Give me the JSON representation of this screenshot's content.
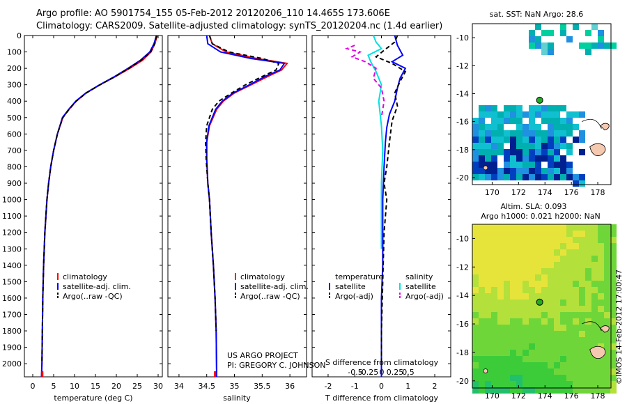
{
  "header": {
    "line1": "Argo profile: AO 5901754_155 05-Feb-2012 20120206_110 14.465S 173.606E",
    "line2": "Climatology: CARS2009. Satellite-adjusted climatology: synTS_20120204.nc (1.4d earlier)"
  },
  "chart_data": [
    {
      "type": "line",
      "id": "temperature",
      "xlabel": "temperature (deg C)",
      "xlim": [
        -2,
        31
      ],
      "xticks": [
        0,
        5,
        10,
        15,
        20,
        25,
        30
      ],
      "ylim": [
        0,
        2080
      ],
      "yticks": [
        0,
        100,
        200,
        300,
        400,
        500,
        600,
        700,
        800,
        900,
        1000,
        1100,
        1200,
        1300,
        1400,
        1500,
        1600,
        1700,
        1800,
        1900,
        2000
      ],
      "legend": [
        "climatology",
        "satellite-adj. clim.",
        "Argo(..raw -QC)"
      ],
      "series": [
        {
          "name": "climatology",
          "color": "#ff0000",
          "dash": "",
          "x": [
            29.8,
            29.2,
            28.3,
            26.3,
            23.2,
            19.8,
            16.1,
            12.8,
            10.4,
            8.7,
            7.2,
            5.9,
            5.0,
            4.3,
            3.8,
            3.4,
            2.9,
            2.6,
            2.4,
            2.3,
            2.2,
            2.1
          ],
          "y": [
            0,
            50,
            100,
            150,
            200,
            250,
            300,
            350,
            400,
            450,
            500,
            600,
            700,
            800,
            900,
            1000,
            1200,
            1400,
            1600,
            1800,
            2000,
            2080
          ]
        },
        {
          "name": "satellite-adj. clim.",
          "color": "#0000ff",
          "dash": "",
          "x": [
            29.6,
            29.0,
            28.0,
            25.8,
            22.8,
            19.6,
            16.0,
            12.7,
            10.3,
            8.6,
            7.1,
            5.9,
            5.0,
            4.3,
            3.8,
            3.4,
            2.9,
            2.6,
            2.4,
            2.3,
            2.2,
            2.1
          ],
          "y": [
            0,
            50,
            100,
            150,
            200,
            250,
            300,
            350,
            400,
            450,
            500,
            600,
            700,
            800,
            900,
            1000,
            1200,
            1400,
            1600,
            1800,
            2000,
            2080
          ]
        },
        {
          "name": "Argo(..raw -QC)",
          "color": "#000000",
          "dash": "6,4",
          "x": [
            29.6,
            29.2,
            28.2,
            26.0,
            23.0,
            19.7,
            16.1,
            12.8,
            10.4,
            8.7,
            7.2,
            5.9,
            5.0,
            4.3,
            3.8,
            3.4,
            2.9,
            2.6,
            2.4,
            2.3,
            2.2
          ],
          "y": [
            0,
            50,
            100,
            150,
            200,
            250,
            300,
            350,
            400,
            450,
            500,
            600,
            700,
            800,
            900,
            1000,
            1200,
            1400,
            1600,
            1800,
            2000
          ]
        }
      ],
      "marker": {
        "color": "#ff0000",
        "x": 2.3
      }
    },
    {
      "type": "line",
      "id": "salinity",
      "xlabel": "salinity",
      "xlim": [
        33.8,
        36.3
      ],
      "xticks": [
        34,
        34.5,
        35,
        35.5,
        36
      ],
      "xtick_labels": [
        "34",
        "34.5",
        "35",
        "35.5",
        "36"
      ],
      "ylim": [
        0,
        2080
      ],
      "legend": [
        "climatology",
        "satellite-adj. clim.",
        "Argo(..raw -QC)"
      ],
      "annotation": [
        "US ARGO PROJECT",
        "PI: GREGORY C. JOHNSON"
      ],
      "series": [
        {
          "name": "climatology",
          "color": "#ff0000",
          "dash": "",
          "x": [
            34.55,
            34.6,
            34.85,
            35.4,
            35.95,
            35.85,
            35.6,
            35.3,
            35.0,
            34.8,
            34.68,
            34.55,
            34.5,
            34.5,
            34.52,
            34.55,
            34.58,
            34.62,
            34.65,
            34.67,
            34.68
          ],
          "y": [
            0,
            50,
            100,
            140,
            170,
            210,
            250,
            300,
            350,
            400,
            450,
            550,
            650,
            750,
            900,
            1000,
            1200,
            1400,
            1600,
            1800,
            2080
          ]
        },
        {
          "name": "satellite-adj. clim.",
          "color": "#0000ff",
          "dash": "",
          "x": [
            34.5,
            34.52,
            34.75,
            35.3,
            35.9,
            35.82,
            35.55,
            35.27,
            34.98,
            34.78,
            34.66,
            34.54,
            34.5,
            34.5,
            34.52,
            34.55,
            34.58,
            34.62,
            34.65,
            34.67,
            34.68
          ],
          "y": [
            0,
            50,
            100,
            140,
            170,
            210,
            250,
            300,
            350,
            400,
            450,
            550,
            650,
            750,
            900,
            1000,
            1200,
            1400,
            1600,
            1800,
            2080
          ]
        },
        {
          "name": "Argo(..raw -QC)",
          "color": "#000000",
          "dash": "6,4",
          "x": [
            34.55,
            34.6,
            34.9,
            35.5,
            35.8,
            35.75,
            35.5,
            35.2,
            34.95,
            34.72,
            34.6,
            34.5,
            34.48,
            34.49,
            34.52,
            34.55,
            34.58,
            34.62,
            34.65,
            34.67
          ],
          "y": [
            0,
            50,
            100,
            140,
            170,
            210,
            250,
            300,
            350,
            400,
            450,
            550,
            650,
            750,
            900,
            1000,
            1200,
            1400,
            1600,
            1800
          ]
        }
      ],
      "marker": {
        "color": "#ff0000",
        "x": 34.65
      }
    },
    {
      "type": "line",
      "id": "difference",
      "xlabel": "T difference from climatology",
      "xlabel_top": "S difference from climatology",
      "xlim": [
        -2.6,
        2.6
      ],
      "xticks": [
        -2,
        -1,
        0,
        1,
        2
      ],
      "xtick_labels": [
        "-2",
        "-1",
        "0",
        "1",
        "2"
      ],
      "sticks": [
        -0.5,
        -0.25,
        0,
        0.25,
        0.5
      ],
      "stick_labels": [
        "-0.5",
        "-0.25",
        "0",
        "0.25",
        "0.5"
      ],
      "ylim": [
        0,
        2080
      ],
      "legend_left_title": "temperature",
      "legend_right_title": "salinity",
      "legend_left": [
        "satellite",
        "Argo(-adj)"
      ],
      "legend_right": [
        "satellite",
        "Argo(-adj)"
      ],
      "series": [
        {
          "name": "T satellite",
          "color": "#0000ff",
          "dash": "",
          "x": [
            0.5,
            0.6,
            0.8,
            0.4,
            0.9,
            0.7,
            0.6,
            0.5,
            0.3,
            0.2,
            0.15,
            0.1,
            0.05,
            0.05,
            0.05,
            0.0,
            0.0,
            0.0,
            0.0
          ],
          "y": [
            0,
            60,
            120,
            160,
            200,
            260,
            320,
            400,
            480,
            560,
            650,
            800,
            1000,
            1200,
            1400,
            1600,
            1800,
            2000,
            2080
          ]
        },
        {
          "name": "T Argo(-adj)",
          "color": "#000000",
          "dash": "6,4",
          "x": [
            0.6,
            0.5,
            0.1,
            -0.2,
            0.4,
            0.9,
            0.7,
            0.5,
            0.6,
            0.4,
            0.3,
            0.2,
            0.1,
            0.2,
            0.1,
            0.05,
            0.0,
            0.0
          ],
          "y": [
            0,
            40,
            90,
            130,
            170,
            220,
            280,
            350,
            430,
            520,
            650,
            800,
            900,
            1000,
            1200,
            1500,
            1800,
            2000
          ]
        },
        {
          "name": "S satellite",
          "color": "#00e0e0",
          "dash": "",
          "x": [
            -0.3,
            -0.2,
            0.0,
            -0.5,
            -0.4,
            -0.2,
            0.0,
            -0.1,
            0.0,
            0.05,
            0.0,
            0.0,
            0.0
          ],
          "y": [
            0,
            40,
            80,
            120,
            160,
            220,
            300,
            400,
            550,
            700,
            900,
            1100,
            1300
          ]
        },
        {
          "name": "S Argo(-adj)",
          "color": "#e000e0",
          "dash": "6,4",
          "x": [
            -1.0,
            -1.3,
            -0.8,
            -1.1,
            -0.6,
            -0.2,
            -0.3,
            0.0,
            0.1,
            0.0
          ],
          "y": [
            60,
            80,
            100,
            130,
            160,
            200,
            260,
            320,
            400,
            500
          ]
        }
      ]
    }
  ],
  "maps": {
    "sst": {
      "title": "sat. SST: NaN Argo: 28.6",
      "xticks": [
        "170",
        "172",
        "174",
        "176",
        "178"
      ],
      "yticks": [
        "-10",
        "-12",
        "-14",
        "-16",
        "-18",
        "-20"
      ],
      "xrange": [
        168.5,
        179
      ],
      "yrange": [
        -9,
        -20.5
      ],
      "float_lon": 173.6,
      "float_lat": -14.47
    },
    "sla": {
      "title1": "Altim. SLA: 0.093",
      "title2": "Argo h1000: 0.021 h2000: NaN",
      "xticks": [
        "170",
        "172",
        "174",
        "176",
        "178"
      ],
      "yticks": [
        "-10",
        "-12",
        "-14",
        "-16",
        "-18",
        "-20"
      ],
      "xrange": [
        168.5,
        179
      ],
      "yrange": [
        -9,
        -20.5
      ],
      "float_lon": 173.6,
      "float_lat": -14.47
    }
  },
  "credit": "©IMOS 14-Feb-2012 17:00:47",
  "colors": {
    "climatology": "#ff0000",
    "satellite": "#0000ff",
    "argo": "#000000",
    "s_sat": "#00e0e0",
    "s_argo": "#e000e0",
    "float": "#22aa22"
  }
}
